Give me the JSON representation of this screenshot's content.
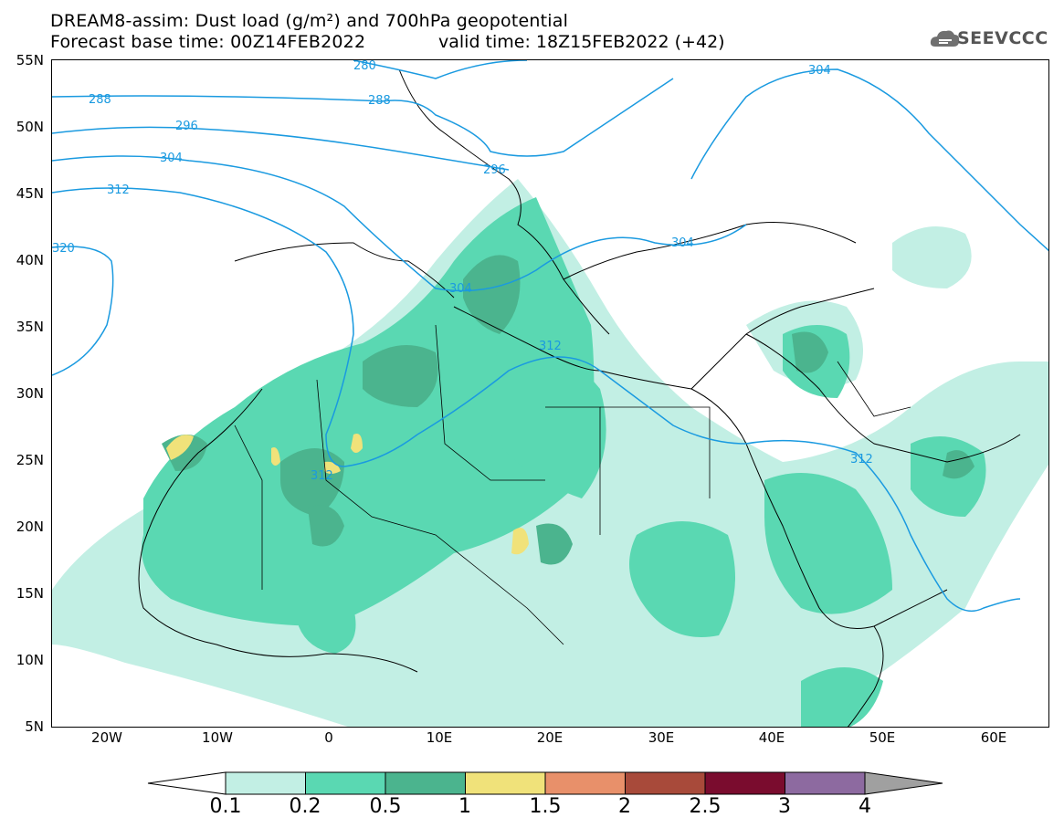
{
  "title": {
    "line1": "DREAM8-assim: Dust load (g/m²) and 700hPa geopotential",
    "line2": "Forecast base time: 00Z14FEB2022",
    "valid": "valid time: 18Z15FEB2022 (+42)"
  },
  "logo": {
    "text": "SEEVCCC",
    "icon": "cloud-logo-icon"
  },
  "axes": {
    "lat_labels": [
      "55N",
      "50N",
      "45N",
      "40N",
      "35N",
      "30N",
      "25N",
      "20N",
      "15N",
      "10N",
      "5N"
    ],
    "lon_labels": [
      "20W",
      "10W",
      "0",
      "10E",
      "20E",
      "30E",
      "40E",
      "50E",
      "60E"
    ]
  },
  "colorbar": {
    "labels": [
      "0.1",
      "0.2",
      "0.5",
      "1",
      "1.5",
      "2",
      "2.5",
      "3",
      "4"
    ],
    "colors": [
      "#ffffff",
      "#c2efe4",
      "#5ad8b2",
      "#4bb48e",
      "#f0e27a",
      "#e8906a",
      "#a84a3a",
      "#7a0c2e",
      "#8d6aa0",
      "#a0a0a0"
    ]
  },
  "contours": {
    "color": "#1a9ae0",
    "labels": [
      "280",
      "288",
      "288",
      "296",
      "296",
      "304",
      "304",
      "304",
      "304",
      "312",
      "312",
      "312",
      "312",
      "320"
    ]
  },
  "map_info": {
    "lon_range": [
      -25,
      65
    ],
    "lat_range": [
      5,
      55
    ],
    "variable": "Dust load (g/m²)",
    "overlay": "700hPa geopotential"
  }
}
